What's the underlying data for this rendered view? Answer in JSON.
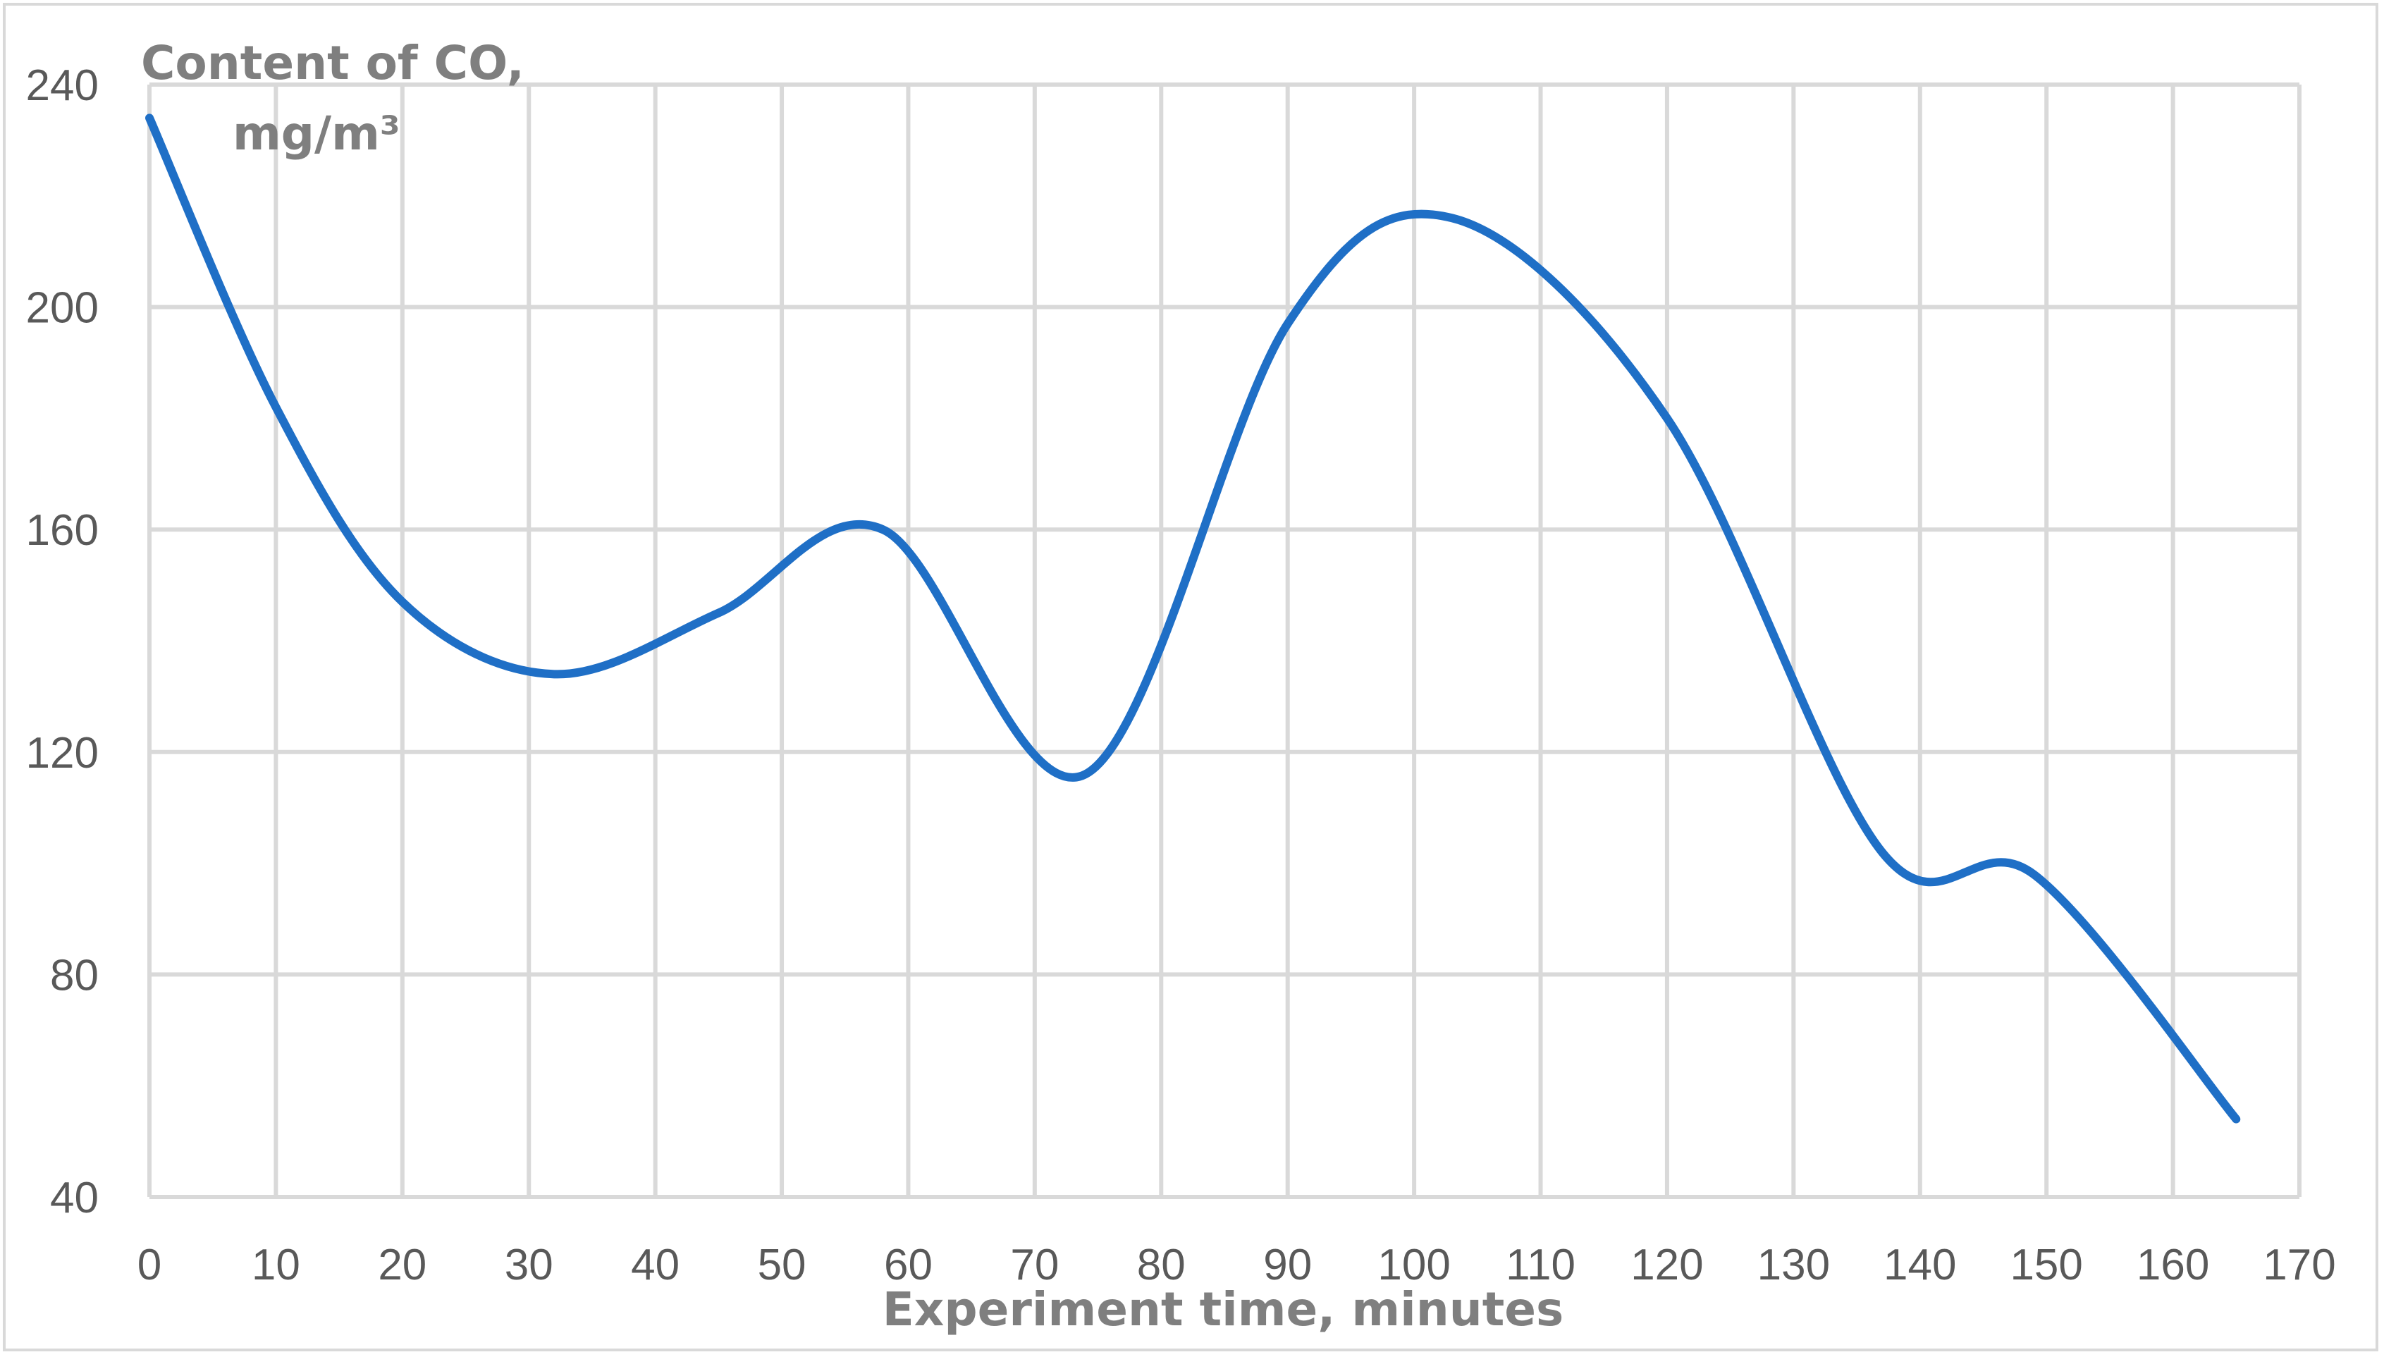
{
  "chart_data": {
    "type": "line",
    "title": "",
    "ylabel_line1": "Content of CO,",
    "ylabel_line2": "mg/m³",
    "xlabel": "Experiment time, minutes",
    "xlim": [
      0,
      170
    ],
    "ylim": [
      40,
      240
    ],
    "x_ticks": [
      0,
      10,
      20,
      30,
      40,
      50,
      60,
      70,
      80,
      90,
      100,
      110,
      120,
      130,
      140,
      150,
      160,
      170
    ],
    "y_ticks": [
      40,
      80,
      120,
      160,
      200,
      240
    ],
    "grid": true,
    "legend": "none",
    "series": [
      {
        "color": "#1f6fc6",
        "smooth": true,
        "x": [
          0,
          10,
          20,
          32,
          45,
          58,
          74,
          90,
          103,
          120,
          137,
          149,
          165
        ],
        "y": [
          234,
          182,
          147,
          134,
          145,
          160,
          116,
          197,
          216,
          180,
          102,
          98,
          54
        ]
      }
    ]
  }
}
